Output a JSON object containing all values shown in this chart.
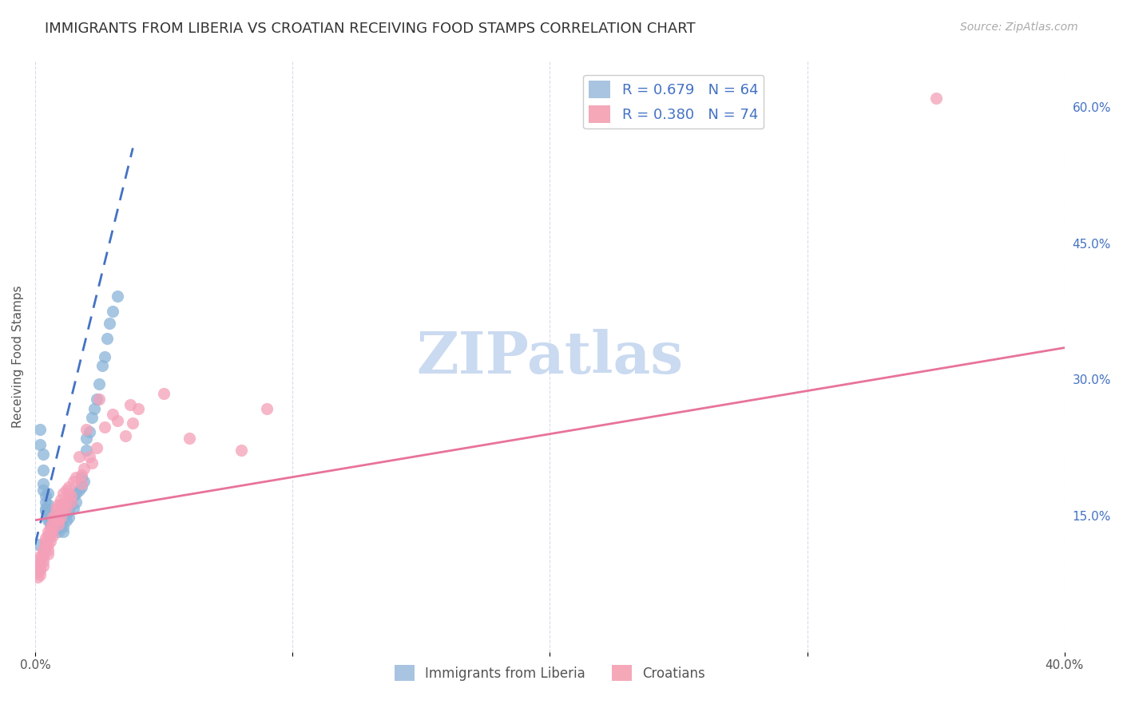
{
  "title": "IMMIGRANTS FROM LIBERIA VS CROATIAN RECEIVING FOOD STAMPS CORRELATION CHART",
  "source": "Source: ZipAtlas.com",
  "ylabel": "Receiving Food Stamps",
  "xlim": [
    0.0,
    0.4
  ],
  "ylim": [
    0.0,
    0.65
  ],
  "x_tick_positions": [
    0.0,
    0.1,
    0.2,
    0.3,
    0.4
  ],
  "x_tick_labels": [
    "0.0%",
    "",
    "",
    "",
    "40.0%"
  ],
  "y_ticks_right": [
    0.15,
    0.3,
    0.45,
    0.6
  ],
  "y_tick_labels_right": [
    "15.0%",
    "30.0%",
    "45.0%",
    "60.0%"
  ],
  "legend_top": [
    {
      "label": "R = 0.679   N = 64",
      "color": "#a8c4e0"
    },
    {
      "label": "R = 0.380   N = 74",
      "color": "#f4a8b8"
    }
  ],
  "legend_bottom": [
    {
      "label": "Immigrants from Liberia",
      "color": "#a8c4e0"
    },
    {
      "label": "Croatians",
      "color": "#f4a8b8"
    }
  ],
  "liberia_scatter": [
    [
      0.001,
      0.118
    ],
    [
      0.002,
      0.245
    ],
    [
      0.002,
      0.228
    ],
    [
      0.003,
      0.185
    ],
    [
      0.003,
      0.218
    ],
    [
      0.003,
      0.2
    ],
    [
      0.003,
      0.178
    ],
    [
      0.004,
      0.155
    ],
    [
      0.004,
      0.165
    ],
    [
      0.004,
      0.172
    ],
    [
      0.004,
      0.158
    ],
    [
      0.005,
      0.148
    ],
    [
      0.005,
      0.162
    ],
    [
      0.005,
      0.175
    ],
    [
      0.005,
      0.155
    ],
    [
      0.005,
      0.145
    ],
    [
      0.006,
      0.142
    ],
    [
      0.006,
      0.148
    ],
    [
      0.006,
      0.152
    ],
    [
      0.006,
      0.142
    ],
    [
      0.007,
      0.145
    ],
    [
      0.007,
      0.148
    ],
    [
      0.007,
      0.135
    ],
    [
      0.007,
      0.132
    ],
    [
      0.008,
      0.138
    ],
    [
      0.008,
      0.142
    ],
    [
      0.008,
      0.145
    ],
    [
      0.008,
      0.135
    ],
    [
      0.009,
      0.142
    ],
    [
      0.009,
      0.138
    ],
    [
      0.009,
      0.132
    ],
    [
      0.01,
      0.14
    ],
    [
      0.01,
      0.145
    ],
    [
      0.01,
      0.148
    ],
    [
      0.01,
      0.138
    ],
    [
      0.011,
      0.132
    ],
    [
      0.011,
      0.138
    ],
    [
      0.012,
      0.145
    ],
    [
      0.012,
      0.152
    ],
    [
      0.013,
      0.155
    ],
    [
      0.013,
      0.148
    ],
    [
      0.014,
      0.162
    ],
    [
      0.014,
      0.168
    ],
    [
      0.015,
      0.172
    ],
    [
      0.015,
      0.158
    ],
    [
      0.016,
      0.165
    ],
    [
      0.016,
      0.175
    ],
    [
      0.017,
      0.178
    ],
    [
      0.018,
      0.192
    ],
    [
      0.018,
      0.182
    ],
    [
      0.019,
      0.188
    ],
    [
      0.02,
      0.235
    ],
    [
      0.02,
      0.222
    ],
    [
      0.021,
      0.242
    ],
    [
      0.022,
      0.258
    ],
    [
      0.023,
      0.268
    ],
    [
      0.024,
      0.278
    ],
    [
      0.025,
      0.295
    ],
    [
      0.026,
      0.315
    ],
    [
      0.027,
      0.325
    ],
    [
      0.028,
      0.345
    ],
    [
      0.029,
      0.362
    ],
    [
      0.03,
      0.375
    ],
    [
      0.032,
      0.392
    ]
  ],
  "croatian_scatter": [
    [
      0.001,
      0.088
    ],
    [
      0.001,
      0.095
    ],
    [
      0.001,
      0.102
    ],
    [
      0.001,
      0.082
    ],
    [
      0.002,
      0.09
    ],
    [
      0.002,
      0.098
    ],
    [
      0.002,
      0.105
    ],
    [
      0.002,
      0.085
    ],
    [
      0.002,
      0.092
    ],
    [
      0.003,
      0.095
    ],
    [
      0.003,
      0.1
    ],
    [
      0.003,
      0.105
    ],
    [
      0.003,
      0.112
    ],
    [
      0.003,
      0.108
    ],
    [
      0.004,
      0.115
    ],
    [
      0.004,
      0.118
    ],
    [
      0.004,
      0.122
    ],
    [
      0.004,
      0.125
    ],
    [
      0.005,
      0.128
    ],
    [
      0.005,
      0.132
    ],
    [
      0.005,
      0.118
    ],
    [
      0.005,
      0.112
    ],
    [
      0.005,
      0.108
    ],
    [
      0.006,
      0.122
    ],
    [
      0.006,
      0.128
    ],
    [
      0.006,
      0.132
    ],
    [
      0.006,
      0.138
    ],
    [
      0.007,
      0.142
    ],
    [
      0.007,
      0.148
    ],
    [
      0.007,
      0.135
    ],
    [
      0.007,
      0.128
    ],
    [
      0.008,
      0.145
    ],
    [
      0.008,
      0.152
    ],
    [
      0.008,
      0.158
    ],
    [
      0.009,
      0.162
    ],
    [
      0.009,
      0.145
    ],
    [
      0.009,
      0.14
    ],
    [
      0.01,
      0.155
    ],
    [
      0.01,
      0.162
    ],
    [
      0.01,
      0.168
    ],
    [
      0.01,
      0.148
    ],
    [
      0.011,
      0.175
    ],
    [
      0.011,
      0.162
    ],
    [
      0.011,
      0.155
    ],
    [
      0.012,
      0.178
    ],
    [
      0.012,
      0.165
    ],
    [
      0.012,
      0.158
    ],
    [
      0.013,
      0.175
    ],
    [
      0.013,
      0.182
    ],
    [
      0.014,
      0.172
    ],
    [
      0.014,
      0.165
    ],
    [
      0.015,
      0.188
    ],
    [
      0.016,
      0.192
    ],
    [
      0.017,
      0.215
    ],
    [
      0.018,
      0.185
    ],
    [
      0.018,
      0.195
    ],
    [
      0.019,
      0.202
    ],
    [
      0.02,
      0.245
    ],
    [
      0.021,
      0.215
    ],
    [
      0.022,
      0.208
    ],
    [
      0.024,
      0.225
    ],
    [
      0.025,
      0.278
    ],
    [
      0.027,
      0.248
    ],
    [
      0.03,
      0.262
    ],
    [
      0.032,
      0.255
    ],
    [
      0.035,
      0.238
    ],
    [
      0.037,
      0.272
    ],
    [
      0.038,
      0.252
    ],
    [
      0.04,
      0.268
    ],
    [
      0.05,
      0.285
    ],
    [
      0.06,
      0.235
    ],
    [
      0.08,
      0.222
    ],
    [
      0.09,
      0.268
    ],
    [
      0.35,
      0.61
    ]
  ],
  "liberia_line_x": [
    0.0,
    0.038
  ],
  "liberia_line_y": [
    0.118,
    0.555
  ],
  "liberia_line_color": "#4472c4",
  "croatian_line_x": [
    0.0,
    0.4
  ],
  "croatian_line_y": [
    0.145,
    0.335
  ],
  "croatian_line_color": "#e8739a",
  "liberia_color": "#8ab4d8",
  "croatian_color": "#f4a0b8",
  "background_color": "#ffffff",
  "grid_color": "#d0d8e8",
  "watermark": "ZIPatlas",
  "watermark_color": "#c8d8f0",
  "title_fontsize": 13,
  "axis_label_fontsize": 11,
  "legend_text_color": "#4472c4"
}
